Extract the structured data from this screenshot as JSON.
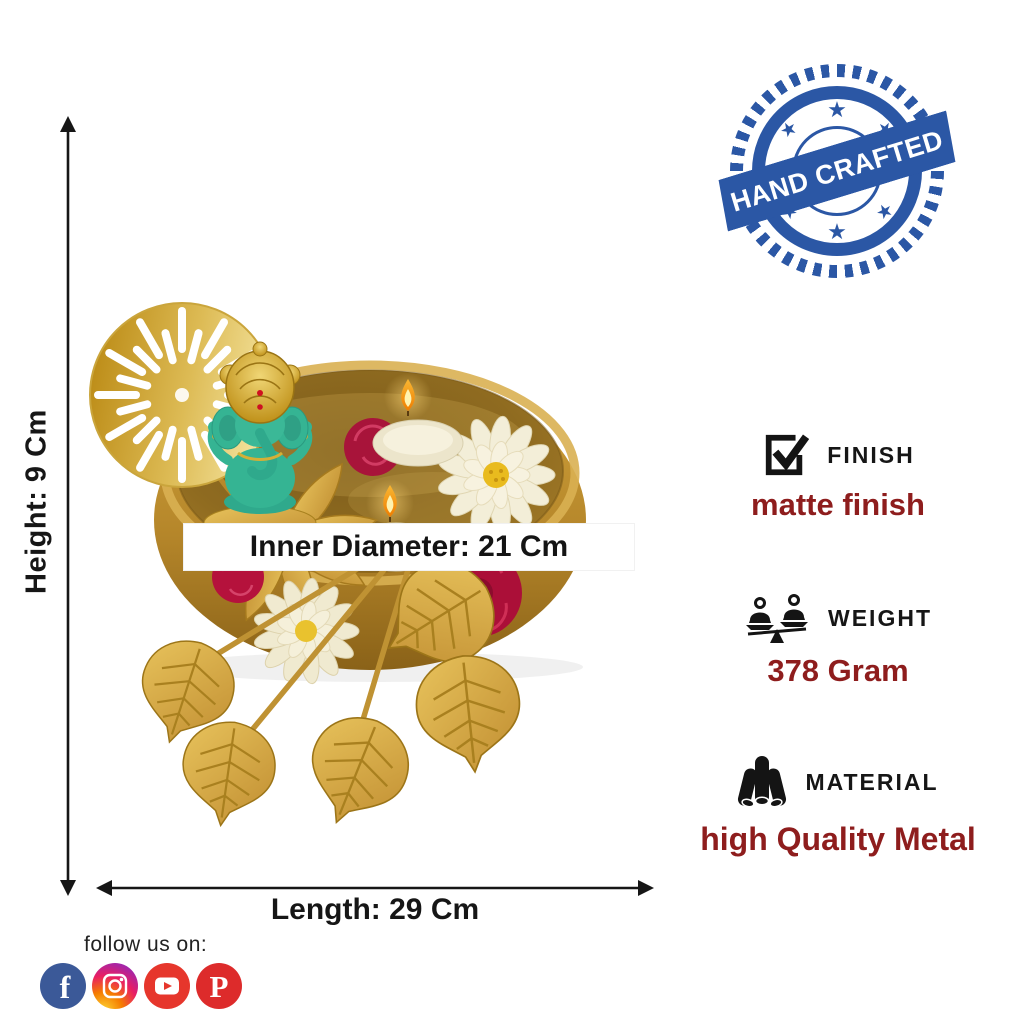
{
  "badge": {
    "label": "HAND CRAFTED",
    "star_glyph": "★",
    "color": "#2b57a5"
  },
  "annotations": {
    "height": "Height: 9 Cm",
    "inner_diameter": "Inner Diameter: 21 Cm",
    "length": "Length: 29 Cm"
  },
  "specs": {
    "finish": {
      "icon": "check-square-icon",
      "title": "FINISH",
      "value": "matte finish"
    },
    "weight": {
      "icon": "balance-scale-icon",
      "title": "WEIGHT",
      "value": "378 Gram"
    },
    "material": {
      "icon": "metal-pipes-icon",
      "title": "MATERIAL",
      "value": "high Quality Metal"
    }
  },
  "footer": {
    "follow_label": "follow us on:",
    "facebook_glyph": "f",
    "pinterest_glyph": "P"
  },
  "colors": {
    "spec_value_maroon": "#8e1d1d",
    "badge_blue": "#2b57a5",
    "gold": "#c9992e",
    "facebook_blue": "#3b5998",
    "youtube_red": "#e6362c",
    "pinterest_red": "#dd2b2b",
    "instagram_gradient": [
      "#fdd835",
      "#e91e63",
      "#7b1fa2"
    ]
  }
}
